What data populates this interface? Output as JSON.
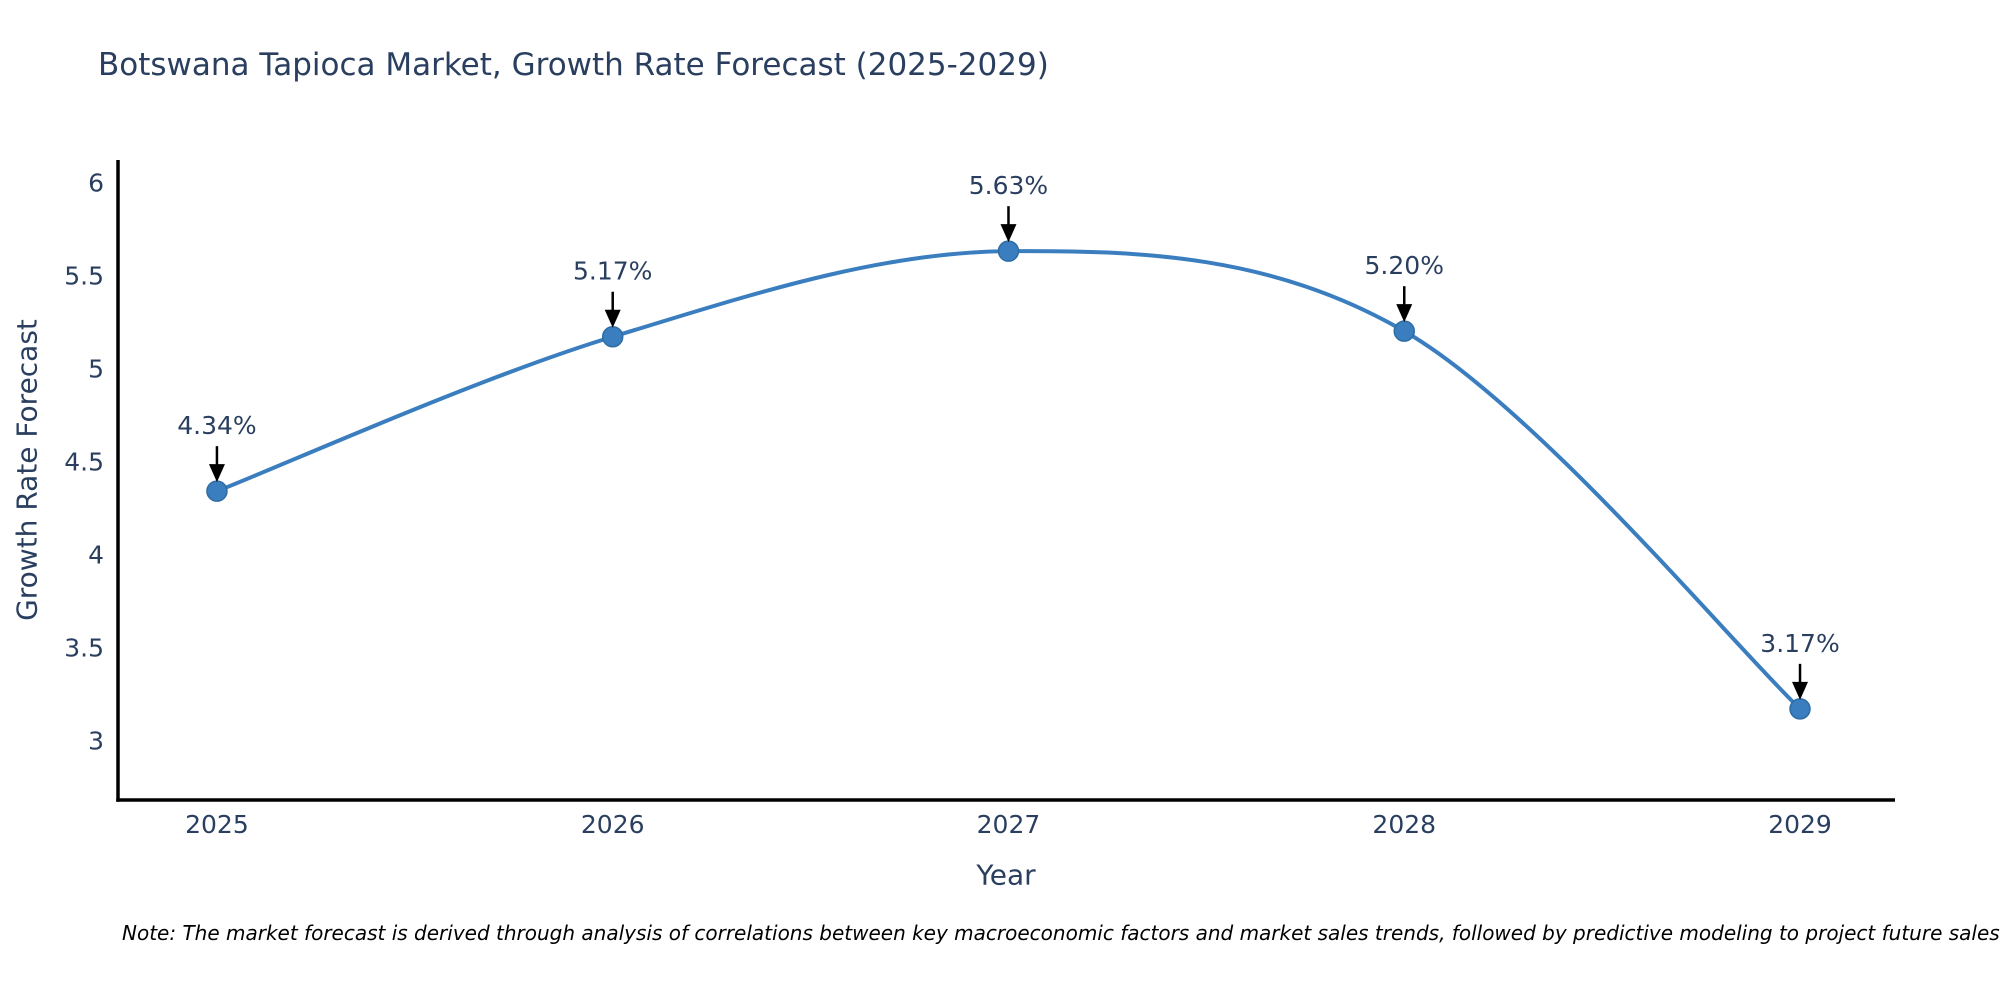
{
  "title": "Botswana Tapioca Market, Growth Rate Forecast (2025-2029)",
  "note": "Note: The market forecast is derived through analysis of correlations between key macroeconomic factors and market sales trends, followed by predictive modeling to project future sales",
  "chart_data": {
    "type": "line",
    "title": "Botswana Tapioca Market, Growth Rate Forecast (2025-2029)",
    "xlabel": "Year",
    "ylabel": "Growth Rate Forecast",
    "x": [
      2025,
      2026,
      2027,
      2028,
      2029
    ],
    "xtick_labels": [
      "2025",
      "2026",
      "2027",
      "2028",
      "2029"
    ],
    "series": [
      {
        "name": "Growth Rate Forecast",
        "values": [
          4.34,
          5.17,
          5.63,
          5.2,
          3.17
        ],
        "point_labels": [
          "4.34%",
          "5.17%",
          "5.63%",
          "5.20%",
          "3.17%"
        ]
      }
    ],
    "yticks": [
      3,
      3.5,
      4,
      4.5,
      5,
      5.5,
      6
    ],
    "ytick_labels": [
      "3",
      "3.5",
      "4",
      "4.5",
      "5",
      "5.5",
      "6"
    ],
    "ylim": [
      2.68,
      6.12
    ],
    "xlim": [
      2024.75,
      2029.24
    ],
    "grid": false,
    "legend": "none",
    "line_shape": "spline",
    "colors": {
      "line": "#3a7ebf",
      "marker": "#3a7ebf",
      "marker_edge": "#2e6da4",
      "axis_line": "#000000",
      "tick_text": "#2a3f5f",
      "title_text": "#2a3f5f",
      "annotation_text": "#2a3f5f",
      "annotation_arrow": "#000000",
      "note_text": "#000000"
    }
  }
}
